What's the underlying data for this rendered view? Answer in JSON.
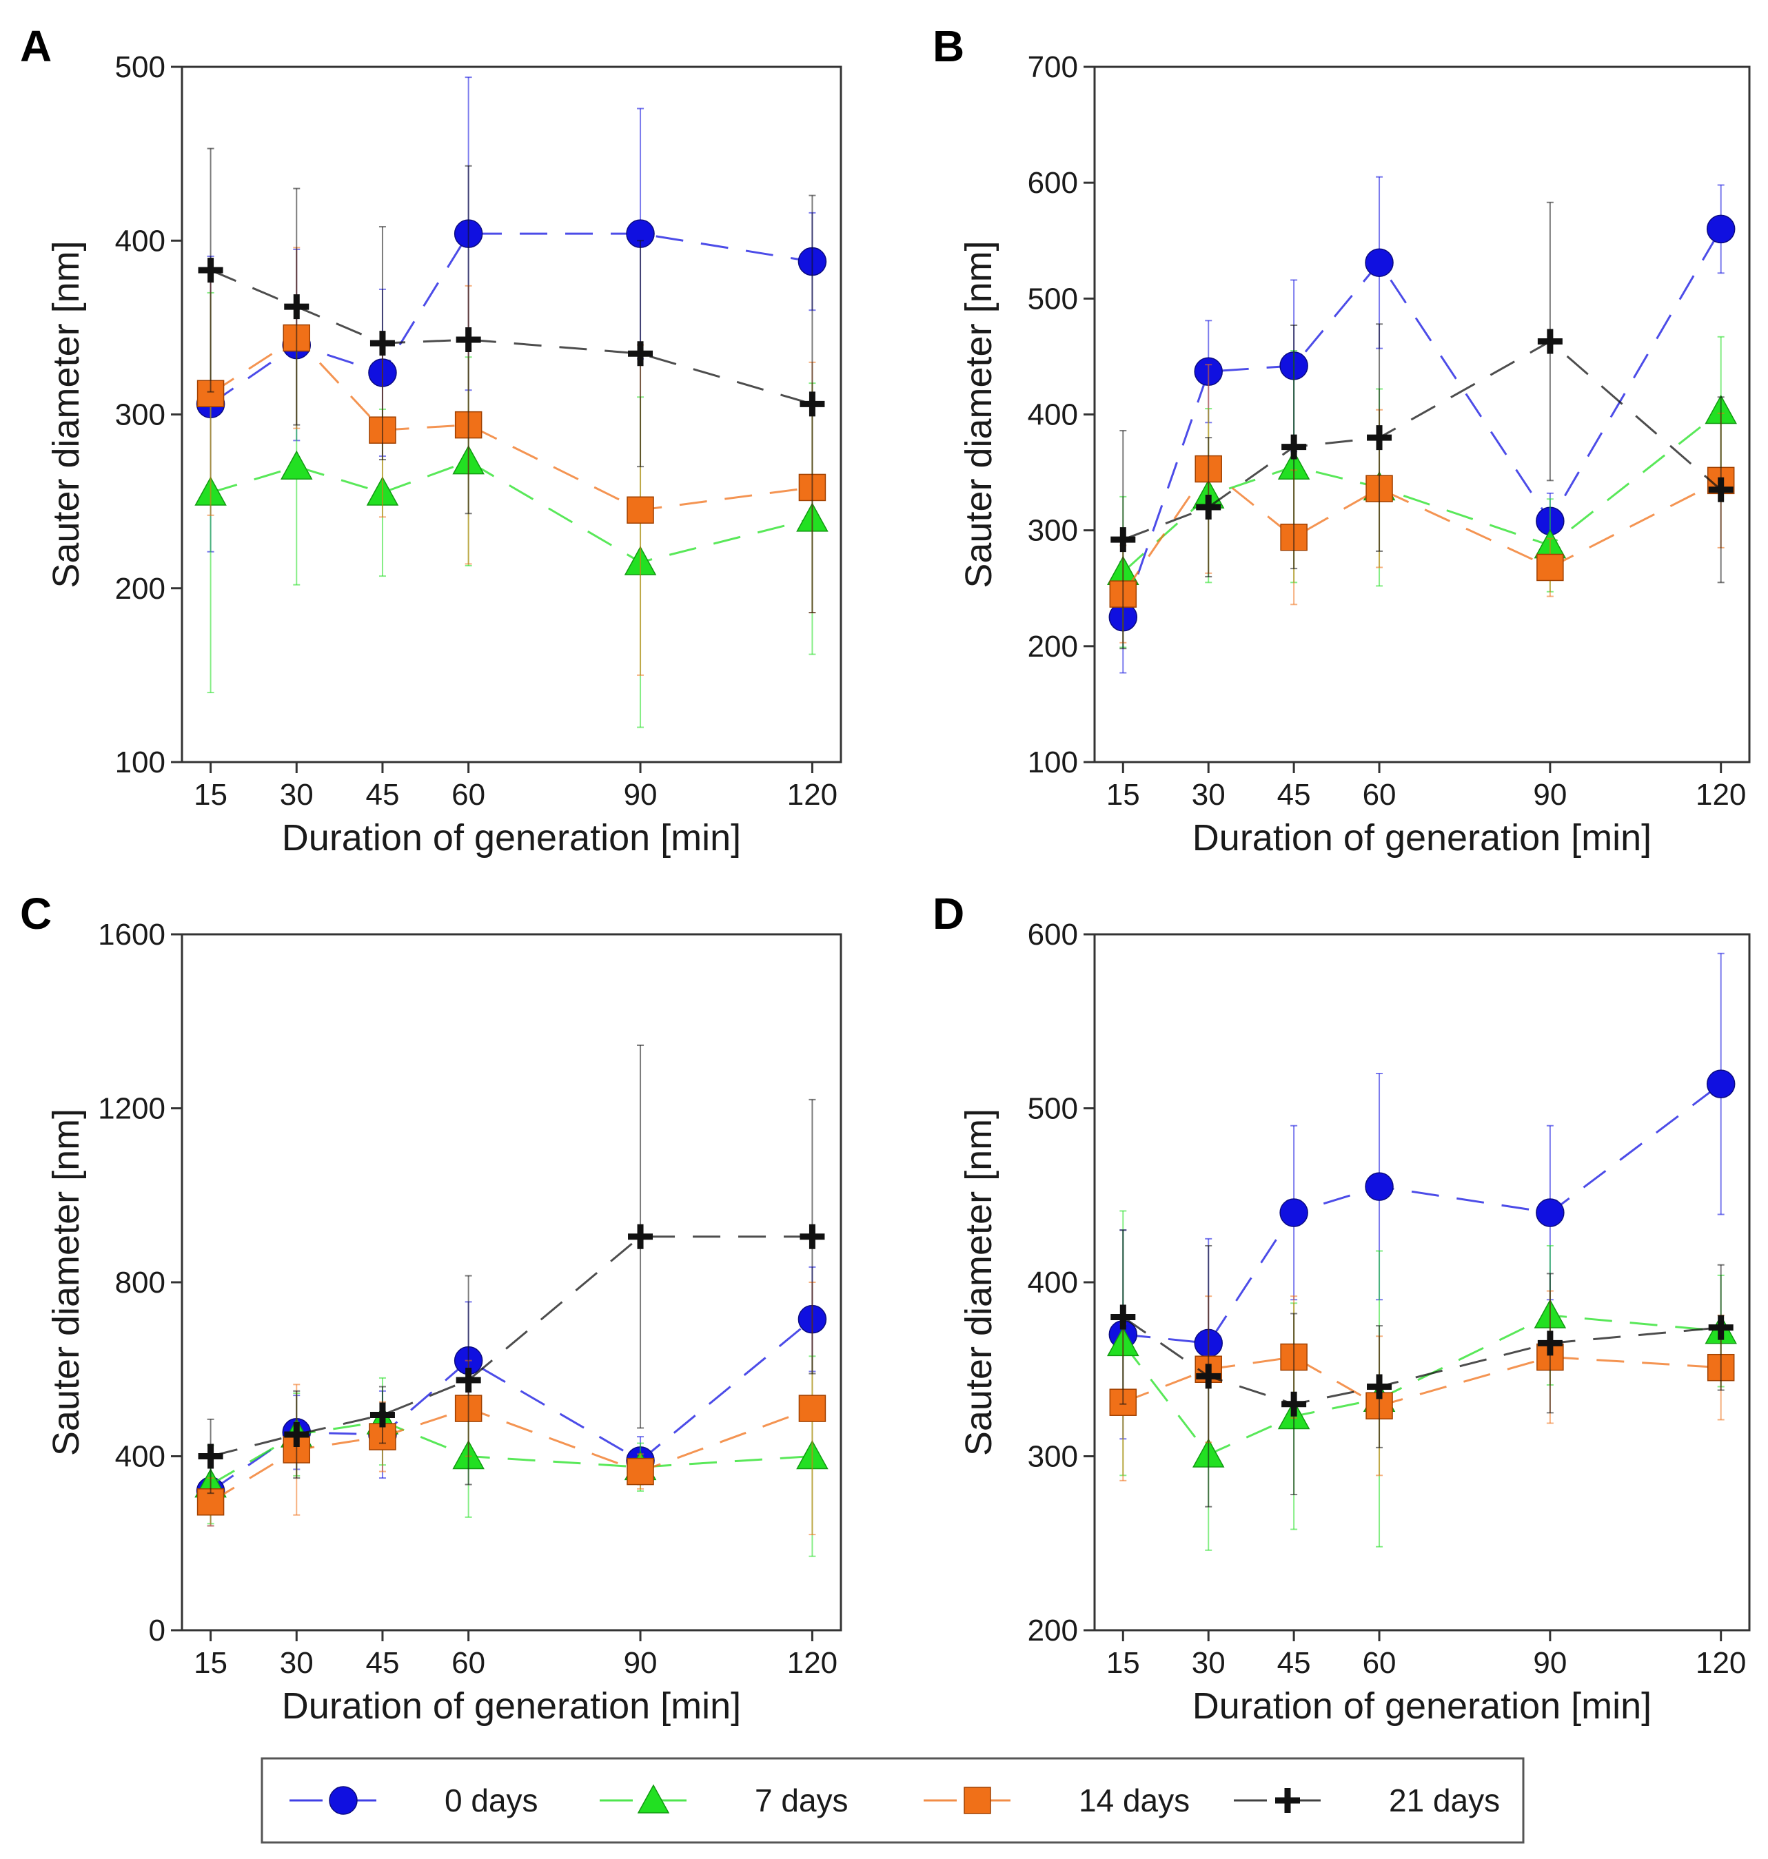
{
  "series_styles": [
    {
      "name": "0 days",
      "color": "#1010e0",
      "marker": "circle"
    },
    {
      "name": "7 days",
      "color": "#22e022",
      "marker": "triangle"
    },
    {
      "name": "14 days",
      "color": "#f07018",
      "marker": "square"
    },
    {
      "name": "21 days",
      "color": "#111111",
      "marker": "plus"
    }
  ],
  "legend": {
    "labels": [
      "0 days",
      "7 days",
      "14 days",
      "21 days"
    ],
    "placement": "bottom-center"
  },
  "chart_data": [
    {
      "panel": "A",
      "type": "line",
      "xlabel": "Duration of generation [min]",
      "ylabel": "Sauter diameter [nm]",
      "x": [
        15,
        30,
        45,
        60,
        90,
        120
      ],
      "x_tick_labels": [
        "15",
        "30",
        "45",
        "60",
        "90",
        "120"
      ],
      "xlim": [
        10,
        125
      ],
      "ylim": [
        100,
        500
      ],
      "y_ticks": [
        100,
        200,
        300,
        400,
        500
      ],
      "series": [
        {
          "name": "0 days",
          "values": [
            306,
            340,
            324,
            404,
            404,
            388
          ],
          "errors": [
            85,
            55,
            48,
            90,
            72,
            28
          ]
        },
        {
          "name": "7 days",
          "values": [
            255,
            270,
            255,
            273,
            215,
            240
          ],
          "errors": [
            115,
            68,
            48,
            60,
            95,
            78
          ]
        },
        {
          "name": "14 days",
          "values": [
            312,
            344,
            291,
            294,
            245,
            258
          ],
          "errors": [
            70,
            52,
            50,
            80,
            95,
            72
          ]
        },
        {
          "name": "21 days",
          "values": [
            383,
            362,
            341,
            343,
            335,
            306
          ],
          "errors": [
            70,
            68,
            67,
            100,
            65,
            120
          ]
        }
      ]
    },
    {
      "panel": "B",
      "type": "line",
      "xlabel": "Duration of generation [min]",
      "ylabel": "Sauter diameter [nm]",
      "x": [
        15,
        30,
        45,
        60,
        90,
        120
      ],
      "x_tick_labels": [
        "15",
        "30",
        "45",
        "60",
        "90",
        "120"
      ],
      "xlim": [
        10,
        125
      ],
      "ylim": [
        100,
        700
      ],
      "y_ticks": [
        100,
        200,
        300,
        400,
        500,
        600,
        700
      ],
      "series": [
        {
          "name": "0 days",
          "values": [
            225,
            437,
            442,
            531,
            308,
            560
          ],
          "errors": [
            48,
            44,
            74,
            74,
            24,
            38
          ]
        },
        {
          "name": "7 days",
          "values": [
            264,
            330,
            355,
            337,
            287,
            403
          ],
          "errors": [
            65,
            75,
            100,
            85,
            40,
            64
          ]
        },
        {
          "name": "14 days",
          "values": [
            245,
            353,
            294,
            336,
            268,
            343
          ],
          "errors": [
            42,
            90,
            58,
            68,
            25,
            58
          ]
        },
        {
          "name": "21 days",
          "values": [
            292,
            320,
            372,
            380,
            463,
            335
          ],
          "errors": [
            94,
            60,
            105,
            98,
            120,
            80
          ]
        }
      ]
    },
    {
      "panel": "C",
      "type": "line",
      "xlabel": "Duration of generation [min]",
      "ylabel": "Sauter diameter [nm]",
      "x": [
        15,
        30,
        45,
        60,
        90,
        120
      ],
      "x_tick_labels": [
        "15",
        "30",
        "45",
        "60",
        "90",
        "120"
      ],
      "xlim": [
        10,
        125
      ],
      "ylim": [
        0,
        1600
      ],
      "y_ticks": [
        0,
        400,
        800,
        1200,
        1600
      ],
      "series": [
        {
          "name": "0 days",
          "values": [
            320,
            455,
            450,
            620,
            390,
            715
          ],
          "errors": [
            80,
            85,
            100,
            135,
            55,
            120
          ]
        },
        {
          "name": "7 days",
          "values": [
            335,
            450,
            480,
            400,
            375,
            400
          ],
          "errors": [
            90,
            95,
            100,
            140,
            55,
            230
          ]
        },
        {
          "name": "14 days",
          "values": [
            295,
            415,
            445,
            510,
            365,
            510
          ],
          "errors": [
            55,
            150,
            80,
            110,
            40,
            290
          ]
        },
        {
          "name": "21 days",
          "values": [
            400,
            450,
            495,
            575,
            905,
            905
          ],
          "errors": [
            85,
            100,
            65,
            240,
            440,
            315
          ]
        }
      ]
    },
    {
      "panel": "D",
      "type": "line",
      "xlabel": "Duration of generation [min]",
      "ylabel": "Sauter diameter [nm]",
      "x": [
        15,
        30,
        45,
        60,
        90,
        120
      ],
      "x_tick_labels": [
        "15",
        "30",
        "45",
        "60",
        "90",
        "120"
      ],
      "xlim": [
        10,
        125
      ],
      "ylim": [
        200,
        600
      ],
      "y_ticks": [
        200,
        300,
        400,
        500,
        600
      ],
      "series": [
        {
          "name": "0 days",
          "values": [
            370,
            365,
            440,
            455,
            440,
            514
          ],
          "errors": [
            60,
            60,
            50,
            65,
            50,
            75
          ]
        },
        {
          "name": "7 days",
          "values": [
            365,
            301,
            323,
            333,
            381,
            372
          ],
          "errors": [
            76,
            55,
            65,
            85,
            40,
            32
          ]
        },
        {
          "name": "14 days",
          "values": [
            331,
            350,
            357,
            329,
            357,
            351
          ],
          "errors": [
            45,
            42,
            35,
            40,
            38,
            30
          ]
        },
        {
          "name": "21 days",
          "values": [
            380,
            346,
            330,
            340,
            365,
            374
          ],
          "errors": [
            50,
            75,
            52,
            35,
            40,
            36
          ]
        }
      ]
    }
  ]
}
